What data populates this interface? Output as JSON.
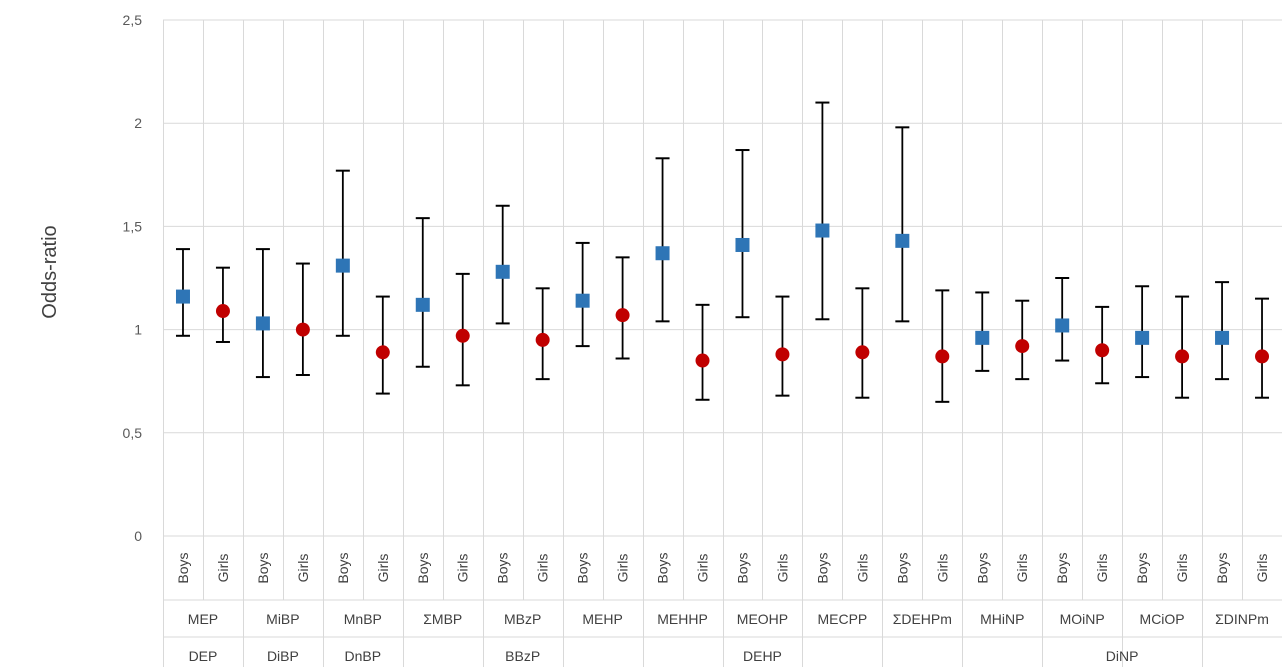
{
  "chart_data": {
    "type": "scatter",
    "title": "",
    "ylabel": "Odds-ratio",
    "xlabel": "",
    "ylim": [
      0,
      2.5
    ],
    "yticks": [
      "0",
      "0,5",
      "1",
      "1,5",
      "2",
      "2,5"
    ],
    "ytick_values": [
      0,
      0.5,
      1,
      1.5,
      2,
      2.5
    ],
    "grid": true,
    "legend": "none",
    "colors": {
      "boys": "#2e75b6",
      "girls": "#c00000",
      "errorbar": "#000000",
      "grid": "#d9d9d9"
    },
    "metabolites": [
      "MEP",
      "MiBP",
      "MnBP",
      "ΣMBP",
      "MBzP",
      "MEHP",
      "MEHHP",
      "MEOHP",
      "MECPP",
      "ΣDEHPm",
      "MHiNP",
      "MOiNP",
      "MCiOP",
      "ΣDINPm"
    ],
    "parents": [
      {
        "label": "DEP",
        "span": 1
      },
      {
        "label": "DiBP",
        "span": 1
      },
      {
        "label": "DnBP",
        "span": 1
      },
      {
        "label": "",
        "span": 1
      },
      {
        "label": "BBzP",
        "span": 1
      },
      {
        "label": "DEHP",
        "span": 5
      },
      {
        "label": "DiNP",
        "span": 4
      }
    ],
    "series": [
      {
        "name": "Boys",
        "marker": "square",
        "values": [
          1.16,
          1.03,
          1.31,
          1.12,
          1.28,
          1.14,
          1.37,
          1.41,
          1.48,
          1.43,
          0.96,
          1.02,
          0.96,
          0.96
        ],
        "lower": [
          0.97,
          0.77,
          0.97,
          0.82,
          1.03,
          0.92,
          1.04,
          1.06,
          1.05,
          1.04,
          0.8,
          0.85,
          0.77,
          0.76
        ],
        "upper": [
          1.39,
          1.39,
          1.77,
          1.54,
          1.6,
          1.42,
          1.83,
          1.87,
          2.1,
          1.98,
          1.18,
          1.25,
          1.21,
          1.23
        ]
      },
      {
        "name": "Girls",
        "marker": "circle",
        "values": [
          1.09,
          1.0,
          0.89,
          0.97,
          0.95,
          1.07,
          0.85,
          0.88,
          0.89,
          0.87,
          0.92,
          0.9,
          0.87,
          0.87
        ],
        "lower": [
          0.94,
          0.78,
          0.69,
          0.73,
          0.76,
          0.86,
          0.66,
          0.68,
          0.67,
          0.65,
          0.76,
          0.74,
          0.67,
          0.67
        ],
        "upper": [
          1.3,
          1.32,
          1.16,
          1.27,
          1.2,
          1.35,
          1.12,
          1.16,
          1.2,
          1.19,
          1.14,
          1.11,
          1.16,
          1.15
        ]
      }
    ]
  }
}
